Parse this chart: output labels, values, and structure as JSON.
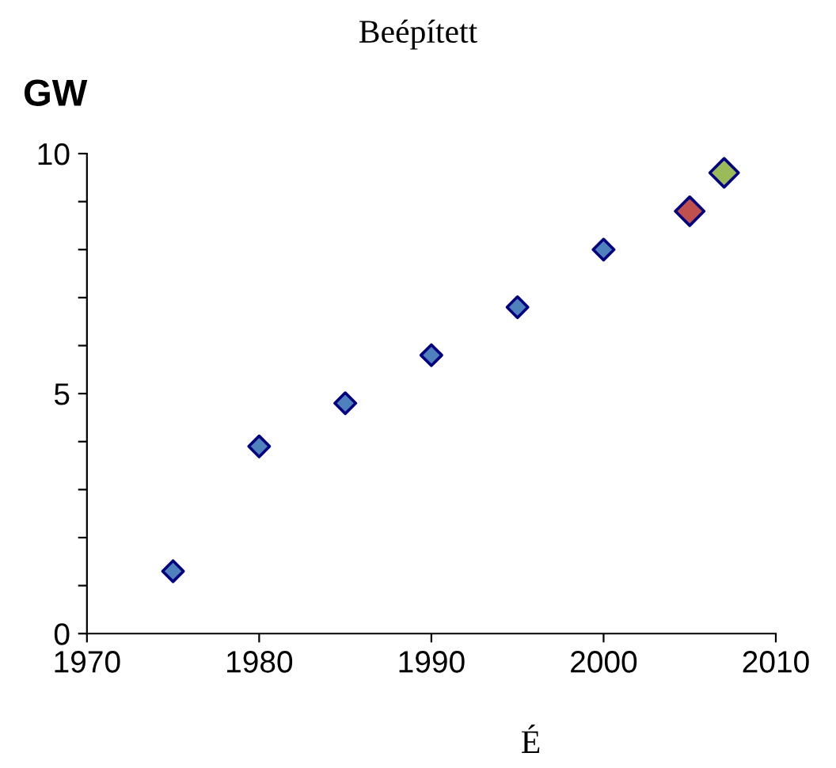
{
  "chart_data": {
    "type": "scatter",
    "title": "Beépített",
    "xlabel": "É",
    "ylabel": "GW",
    "marker": "diamond",
    "grid": false,
    "legend": false,
    "xlim": [
      1970,
      2010
    ],
    "xticks": [
      1970,
      1980,
      1990,
      2000,
      2010
    ],
    "ylim": [
      0,
      10
    ],
    "yticks": [
      0,
      {
        "value": 1,
        "label": null
      },
      {
        "value": 2,
        "label": null
      },
      {
        "value": 3,
        "label": null
      },
      {
        "value": 4,
        "label": null
      },
      5,
      {
        "value": 6,
        "label": null
      },
      {
        "value": 7,
        "label": null
      },
      {
        "value": 8,
        "label": null
      },
      {
        "value": 9,
        "label": null
      },
      10
    ],
    "series": [
      {
        "color": "#4f81bd",
        "x": [
          1975,
          1980,
          1985,
          1990,
          1995,
          2000
        ],
        "values": [
          1.3,
          3.9,
          4.8,
          5.8,
          6.8,
          8.0
        ]
      },
      {
        "color": "#c0504d",
        "x": [
          2005
        ],
        "values": [
          8.8
        ]
      },
      {
        "color": "#9bbb59",
        "x": [
          2007
        ],
        "values": [
          9.6
        ]
      }
    ]
  }
}
